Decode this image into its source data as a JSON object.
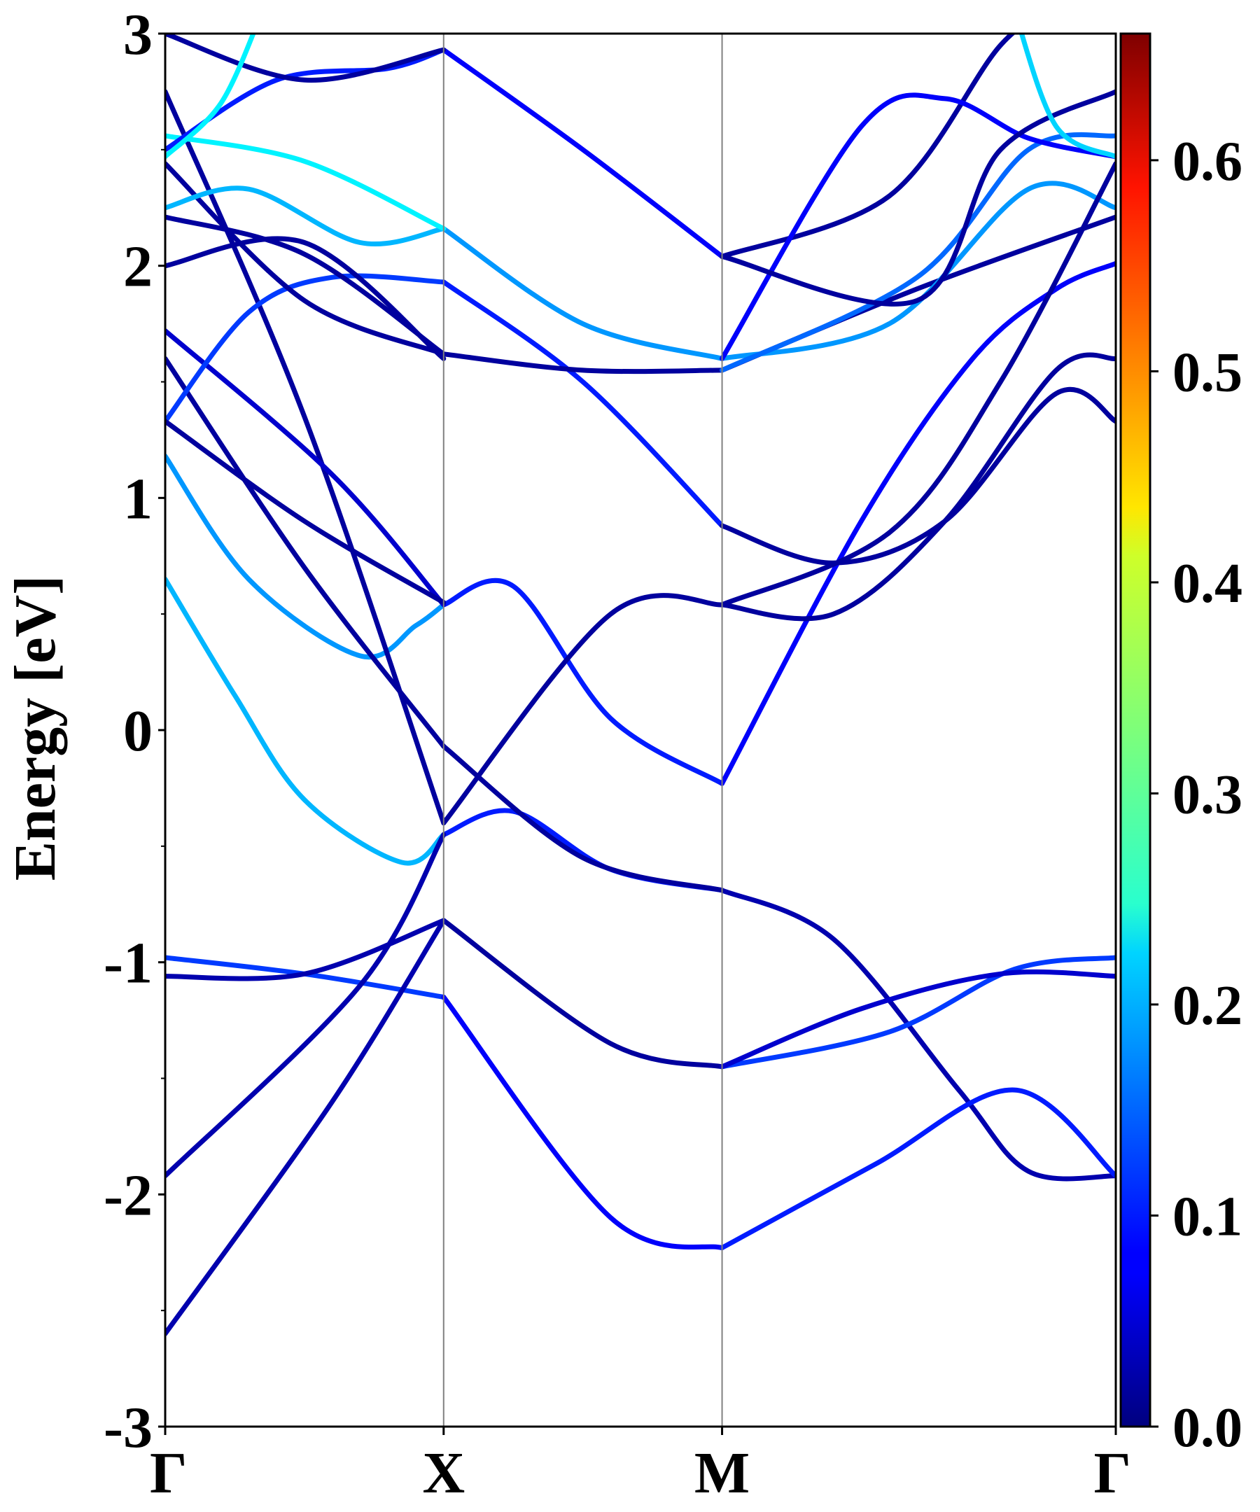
{
  "chart_data": {
    "type": "line",
    "ylabel": "Energy [eV]",
    "xlabel": "",
    "ylim": [
      -3,
      3
    ],
    "x_ticks": [
      "Γ",
      "X",
      "M",
      "Γ"
    ],
    "y_ticks": [
      "-3",
      "-2",
      "-1",
      "0",
      "1",
      "2",
      "3"
    ],
    "grid": "vertical lines at X and M",
    "colorbar": {
      "colormap": "jet",
      "range": [
        0.0,
        0.66
      ],
      "ticks": [
        "0.0",
        "0.1",
        "0.2",
        "0.3",
        "0.4",
        "0.5",
        "0.6"
      ]
    },
    "path_positions": {
      "Γ": 0,
      "X": 1,
      "M": 2,
      "Γ_end": 3.414
    },
    "series": [
      {
        "weight": 0.2,
        "points": [
          [
            0,
            0.65
          ],
          [
            0.25,
            0.15
          ],
          [
            0.5,
            -0.3
          ],
          [
            0.85,
            -0.57
          ],
          [
            1,
            -0.45
          ]
        ]
      },
      {
        "weight": 0.1,
        "points": [
          [
            1,
            -0.45
          ],
          [
            1.25,
            -0.35
          ],
          [
            1.6,
            -0.6
          ],
          [
            2,
            -0.69
          ]
        ]
      },
      {
        "weight": 0.03,
        "points": [
          [
            2,
            -0.69
          ],
          [
            2.4,
            -0.9
          ],
          [
            2.85,
            -1.55
          ],
          [
            3.1,
            -1.9
          ],
          [
            3.414,
            -1.92
          ]
        ]
      },
      {
        "weight": 0.18,
        "points": [
          [
            0,
            1.18
          ],
          [
            0.3,
            0.65
          ],
          [
            0.7,
            0.32
          ],
          [
            0.9,
            0.45
          ],
          [
            1,
            0.54
          ]
        ]
      },
      {
        "weight": 0.1,
        "points": [
          [
            1,
            0.54
          ],
          [
            1.25,
            0.62
          ],
          [
            1.6,
            0.05
          ],
          [
            2,
            -0.23
          ]
        ]
      },
      {
        "weight": 0.08,
        "points": [
          [
            2,
            -0.23
          ],
          [
            2.5,
            0.9
          ],
          [
            2.9,
            1.6
          ],
          [
            3.2,
            1.9
          ],
          [
            3.414,
            2.01
          ]
        ]
      },
      {
        "weight": 0.02,
        "points": [
          [
            0,
            1.6
          ],
          [
            0.5,
            0.7
          ],
          [
            1,
            -0.07
          ]
        ]
      },
      {
        "weight": 0.02,
        "points": [
          [
            1,
            -0.07
          ],
          [
            1.5,
            -0.55
          ],
          [
            2,
            -0.69
          ]
        ]
      },
      {
        "weight": 0.02,
        "points": [
          [
            0,
            2.75
          ],
          [
            0.5,
            1.35
          ],
          [
            1,
            -0.4
          ]
        ]
      },
      {
        "weight": 0.02,
        "points": [
          [
            1,
            -0.4
          ],
          [
            1.6,
            0.5
          ],
          [
            2,
            0.54
          ]
        ]
      },
      {
        "weight": 0.02,
        "points": [
          [
            2,
            0.54
          ],
          [
            2.4,
            0.5
          ],
          [
            2.8,
            0.9
          ],
          [
            3.2,
            1.55
          ],
          [
            3.414,
            1.6
          ]
        ]
      },
      {
        "weight": 0.12,
        "points": [
          [
            0,
            -0.98
          ],
          [
            0.5,
            -1.05
          ],
          [
            1,
            -1.15
          ]
        ]
      },
      {
        "weight": 0.08,
        "points": [
          [
            1,
            -1.15
          ],
          [
            1.6,
            -2.1
          ],
          [
            2,
            -2.23
          ]
        ]
      },
      {
        "weight": 0.1,
        "points": [
          [
            2,
            -2.23
          ],
          [
            2.55,
            -1.87
          ],
          [
            3.05,
            -1.55
          ],
          [
            3.414,
            -1.92
          ]
        ]
      },
      {
        "weight": 0.12,
        "points": [
          [
            2,
            -1.45
          ],
          [
            2.6,
            -1.3
          ],
          [
            3.05,
            -1.03
          ],
          [
            3.414,
            -0.98
          ]
        ]
      },
      {
        "weight": 0.03,
        "points": [
          [
            0,
            -1.06
          ],
          [
            0.5,
            -1.05
          ],
          [
            1,
            -0.82
          ]
        ]
      },
      {
        "weight": 0.02,
        "points": [
          [
            1,
            -0.82
          ],
          [
            1.6,
            -1.35
          ],
          [
            2,
            -1.45
          ]
        ]
      },
      {
        "weight": 0.05,
        "points": [
          [
            2,
            -1.45
          ],
          [
            2.5,
            -1.2
          ],
          [
            3,
            -1.05
          ],
          [
            3.414,
            -1.06
          ]
        ]
      },
      {
        "weight": 0.03,
        "points": [
          [
            0,
            -1.92
          ],
          [
            0.7,
            -1.1
          ],
          [
            1,
            -0.45
          ]
        ]
      },
      {
        "weight": 0.03,
        "points": [
          [
            0,
            -2.6
          ],
          [
            0.6,
            -1.6
          ],
          [
            1,
            -0.82
          ]
        ]
      },
      {
        "weight": 0.05,
        "points": [
          [
            0,
            1.72
          ],
          [
            0.6,
            1.1
          ],
          [
            1,
            0.54
          ]
        ]
      },
      {
        "weight": 0.12,
        "points": [
          [
            0,
            1.33
          ],
          [
            0.3,
            1.8
          ],
          [
            0.6,
            1.95
          ],
          [
            1,
            1.93
          ]
        ]
      },
      {
        "weight": 0.1,
        "points": [
          [
            1,
            1.93
          ],
          [
            1.5,
            1.5
          ],
          [
            2,
            0.88
          ]
        ]
      },
      {
        "weight": 0.02,
        "points": [
          [
            2,
            0.88
          ],
          [
            2.4,
            0.72
          ],
          [
            2.8,
            0.9
          ],
          [
            3.2,
            1.45
          ],
          [
            3.414,
            1.33
          ]
        ]
      },
      {
        "weight": 0.02,
        "points": [
          [
            0,
            1.33
          ],
          [
            0.5,
            0.9
          ],
          [
            1,
            0.55
          ]
        ]
      },
      {
        "weight": 0.02,
        "points": [
          [
            0,
            2.44
          ],
          [
            0.5,
            1.85
          ],
          [
            1,
            1.62
          ]
        ]
      },
      {
        "weight": 0.02,
        "points": [
          [
            1,
            1.62
          ],
          [
            1.5,
            1.55
          ],
          [
            2,
            1.55
          ]
        ]
      },
      {
        "weight": 0.02,
        "points": [
          [
            2,
            1.55
          ],
          [
            2.7,
            1.9
          ],
          [
            3.414,
            2.21
          ]
        ]
      },
      {
        "weight": 0.02,
        "points": [
          [
            0,
            2.21
          ],
          [
            0.5,
            2.05
          ],
          [
            1,
            1.62
          ]
        ]
      },
      {
        "weight": 0.02,
        "points": [
          [
            0,
            2.0
          ],
          [
            0.5,
            2.1
          ],
          [
            1,
            1.6
          ]
        ]
      },
      {
        "weight": 0.2,
        "points": [
          [
            0,
            2.25
          ],
          [
            0.3,
            2.33
          ],
          [
            0.7,
            2.1
          ],
          [
            1,
            2.16
          ]
        ]
      },
      {
        "weight": 0.18,
        "points": [
          [
            1,
            2.16
          ],
          [
            1.5,
            1.75
          ],
          [
            2,
            1.6
          ]
        ]
      },
      {
        "weight": 0.18,
        "points": [
          [
            2,
            1.6
          ],
          [
            2.6,
            1.75
          ],
          [
            3.1,
            2.33
          ],
          [
            3.414,
            2.25
          ]
        ]
      },
      {
        "weight": 0.24,
        "points": [
          [
            0,
            2.56
          ],
          [
            0.5,
            2.45
          ],
          [
            1,
            2.16
          ]
        ]
      },
      {
        "weight": 0.15,
        "points": [
          [
            2,
            1.55
          ],
          [
            2.7,
            1.95
          ],
          [
            3.1,
            2.5
          ],
          [
            3.414,
            2.56
          ]
        ]
      },
      {
        "weight": 0.1,
        "points": [
          [
            0,
            2.5
          ],
          [
            0.4,
            2.8
          ],
          [
            0.8,
            2.85
          ],
          [
            1,
            2.93
          ]
        ]
      },
      {
        "weight": 0.08,
        "points": [
          [
            1,
            2.93
          ],
          [
            1.5,
            2.5
          ],
          [
            2,
            2.04
          ]
        ]
      },
      {
        "weight": 0.02,
        "points": [
          [
            2,
            2.04
          ],
          [
            2.6,
            2.3
          ],
          [
            3.0,
            2.95
          ],
          [
            3.2,
            3.1
          ]
        ]
      },
      {
        "weight": 0.02,
        "points": [
          [
            0,
            3.0
          ],
          [
            0.5,
            2.8
          ],
          [
            1,
            2.93
          ]
        ]
      },
      {
        "weight": 0.08,
        "points": [
          [
            2,
            1.6
          ],
          [
            2.5,
            2.6
          ],
          [
            2.8,
            2.72
          ],
          [
            3.1,
            2.55
          ],
          [
            3.414,
            2.47
          ]
        ]
      },
      {
        "weight": 0.24,
        "points": [
          [
            0,
            2.47
          ],
          [
            0.2,
            2.7
          ],
          [
            0.35,
            3.1
          ]
        ]
      },
      {
        "weight": 0.02,
        "points": [
          [
            2,
            2.04
          ],
          [
            2.7,
            1.85
          ],
          [
            3.0,
            2.5
          ],
          [
            3.414,
            2.75
          ]
        ]
      },
      {
        "weight": 0.02,
        "points": [
          [
            2,
            0.54
          ],
          [
            2.6,
            0.85
          ],
          [
            3.0,
            1.5
          ],
          [
            3.414,
            2.44
          ]
        ]
      },
      {
        "weight": 0.22,
        "points": [
          [
            3.05,
            3.1
          ],
          [
            3.2,
            2.6
          ],
          [
            3.414,
            2.47
          ]
        ]
      }
    ]
  }
}
